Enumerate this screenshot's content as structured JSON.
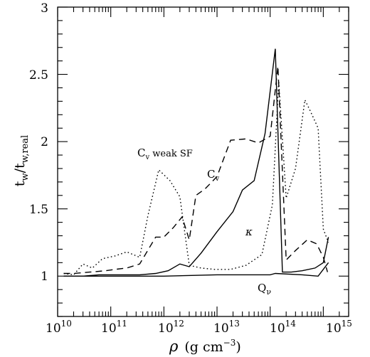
{
  "chart_data": {
    "type": "line",
    "xscale": "log",
    "xlim": [
      10000000000.0,
      3000000000000000.0
    ],
    "ylim": [
      0.7,
      3
    ],
    "x_ticks": [
      10000000000.0,
      100000000000.0,
      1000000000000.0,
      10000000000000.0,
      100000000000000.0,
      1000000000000000.0
    ],
    "x_tick_labels": [
      {
        "base": "10",
        "exp": "10"
      },
      {
        "base": "10",
        "exp": "11"
      },
      {
        "base": "10",
        "exp": "12"
      },
      {
        "base": "10",
        "exp": "13"
      },
      {
        "base": "10",
        "exp": "14"
      },
      {
        "base": "10",
        "exp": "15"
      }
    ],
    "y_ticks": [
      1,
      1.5,
      2,
      2.5,
      3
    ],
    "y_tick_labels": [
      "1",
      "1.5",
      "2",
      "2.5",
      "3"
    ],
    "xlabel": {
      "symbol": "ρ",
      "unit_open": "(g cm",
      "unit_exp": "−3",
      "unit_close": ")"
    },
    "ylabel": {
      "base": "t",
      "sub1": "w",
      "slash": "/t",
      "sub2": "w,real"
    },
    "annotations": [
      {
        "id": "cv-weak-sf",
        "base": "C",
        "sub": "v",
        "rest": " weak SF",
        "italic": false
      },
      {
        "id": "cv",
        "base": "C",
        "sub": "v",
        "rest": "",
        "italic": false
      },
      {
        "id": "kappa",
        "base": "κ",
        "sub": "",
        "rest": "",
        "italic": true
      },
      {
        "id": "qnu",
        "base": "Q",
        "sub": "ν",
        "rest": "",
        "italic": false
      }
    ],
    "series": [
      {
        "key": "kappa",
        "dash": "solid",
        "x": [
          13000000000.0,
          30000000000.0,
          60000000000.0,
          100000000000.0,
          200000000000.0,
          350000000000.0,
          700000000000.0,
          1200000000000.0,
          2000000000000.0,
          3000000000000.0,
          5000000000000.0,
          10000000000000.0,
          20000000000000.0,
          30000000000000.0,
          50000000000000.0,
          80000000000000.0,
          125000000000000.0,
          170000000000000.0,
          250000000000000.0,
          400000000000000.0,
          700000000000000.0,
          1000000000000000.0,
          1250000000000000.0
        ],
        "y": [
          1.0,
          1.0,
          1.01,
          1.01,
          1.01,
          1.01,
          1.02,
          1.04,
          1.09,
          1.07,
          1.17,
          1.33,
          1.48,
          1.64,
          1.71,
          2.06,
          2.69,
          1.03,
          1.03,
          1.04,
          1.06,
          1.1,
          1.29
        ]
      },
      {
        "key": "cv",
        "dash": "dashed",
        "x": [
          13000000000.0,
          20000000000.0,
          40000000000.0,
          80000000000.0,
          120000000000.0,
          200000000000.0,
          350000000000.0,
          700000000000.0,
          1000000000000.0,
          1500000000000.0,
          2200000000000.0,
          3000000000000.0,
          4000000000000.0,
          6000000000000.0,
          10000000000000.0,
          18000000000000.0,
          35000000000000.0,
          60000000000000.0,
          100000000000000.0,
          140000000000000.0,
          200000000000000.0,
          300000000000000.0,
          500000000000000.0,
          750000000000000.0,
          1000000000000000.0,
          1200000000000000.0
        ],
        "y": [
          1.02,
          1.02,
          1.03,
          1.04,
          1.05,
          1.06,
          1.09,
          1.29,
          1.29,
          1.36,
          1.44,
          1.27,
          1.6,
          1.65,
          1.74,
          2.01,
          2.02,
          1.99,
          2.04,
          2.56,
          1.12,
          1.19,
          1.27,
          1.24,
          1.14,
          1.03
        ]
      },
      {
        "key": "cv-weak-sf",
        "dash": "dotted",
        "x": [
          13000000000.0,
          20000000000.0,
          30000000000.0,
          45000000000.0,
          70000000000.0,
          120000000000.0,
          200000000000.0,
          350000000000.0,
          500000000000.0,
          800000000000.0,
          1300000000000.0,
          2000000000000.0,
          3000000000000.0,
          5000000000000.0,
          9000000000000.0,
          18000000000000.0,
          35000000000000.0,
          70000000000000.0,
          110000000000000.0,
          145000000000000.0,
          200000000000000.0,
          300000000000000.0,
          450000000000000.0,
          550000000000000.0,
          800000000000000.0,
          1000000000000000.0,
          1250000000000000.0
        ],
        "y": [
          1.02,
          1.01,
          1.09,
          1.06,
          1.13,
          1.15,
          1.18,
          1.14,
          1.45,
          1.79,
          1.71,
          1.59,
          1.08,
          1.06,
          1.05,
          1.05,
          1.08,
          1.16,
          1.53,
          2.45,
          1.58,
          1.8,
          2.31,
          2.24,
          2.1,
          1.35,
          1.25
        ]
      },
      {
        "key": "qnu",
        "dash": "solid",
        "x": [
          13000000000.0,
          100000000000.0,
          1000000000000.0,
          10000000000000.0,
          100000000000000.0,
          125000000000000.0,
          400000000000000.0,
          800000000000000.0,
          1250000000000000.0
        ],
        "y": [
          1.0,
          1.0,
          1.0,
          1.01,
          1.01,
          1.02,
          1.01,
          1.0,
          1.1
        ]
      }
    ]
  }
}
